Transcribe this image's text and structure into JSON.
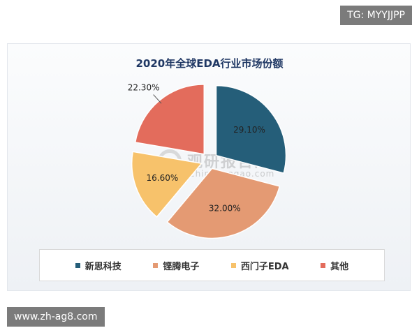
{
  "overlay": {
    "top_tag": "TG: MYYJJPP",
    "bottom_tag": "www.zh-ag8.com"
  },
  "watermark": {
    "brand": "观研报告网",
    "domain": "chinabaogao.com"
  },
  "chart_data": {
    "type": "pie",
    "title": "2020年全球EDA行业市场份额",
    "legend_position": "bottom",
    "slices": [
      {
        "label": "新思科技",
        "value": 29.1,
        "display": "29.10%",
        "color": "#255e79"
      },
      {
        "label": "铿腾电子",
        "value": 32.0,
        "display": "32.00%",
        "color": "#e49a73"
      },
      {
        "label": "西门子EDA",
        "value": 16.6,
        "display": "16.60%",
        "color": "#f7c26b"
      },
      {
        "label": "其他",
        "value": 22.3,
        "display": "22.30%",
        "color": "#e36c5c"
      }
    ]
  }
}
